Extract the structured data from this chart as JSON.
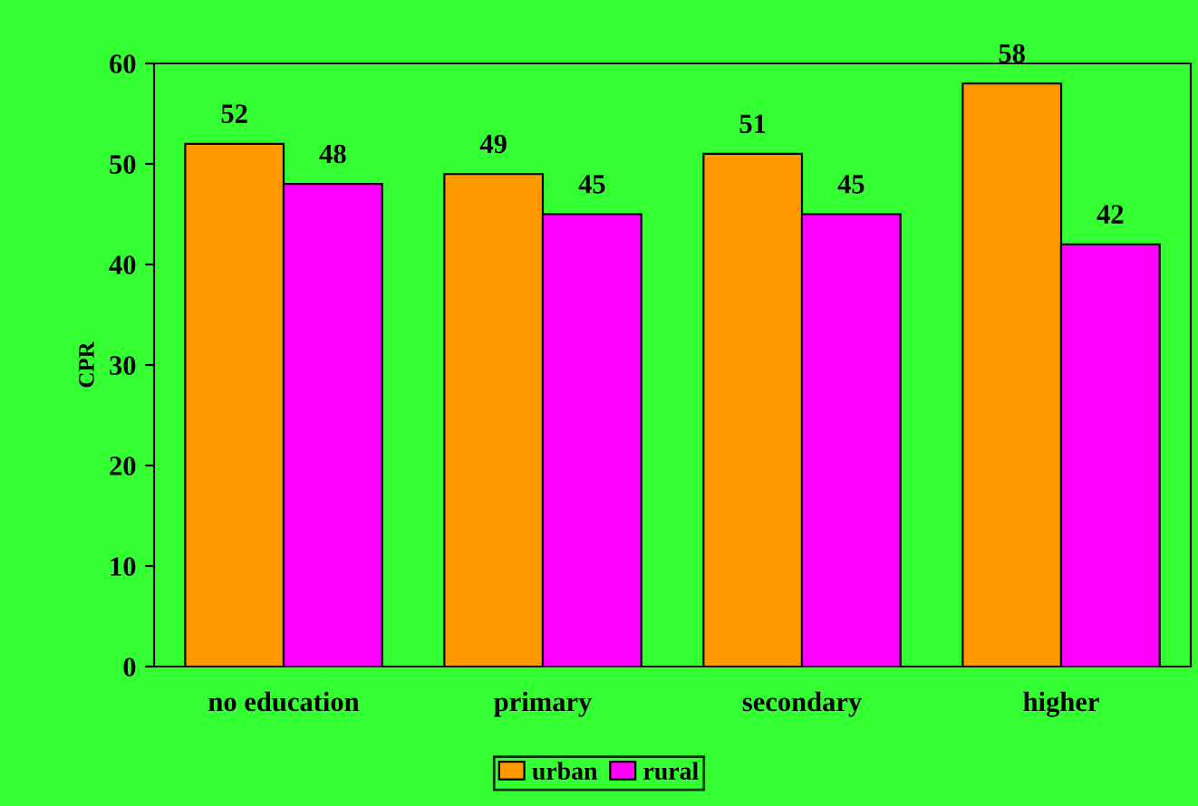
{
  "chart_data": {
    "type": "bar",
    "ylabel": "CPR",
    "categories": [
      "no education",
      "primary",
      "secondary",
      "higher"
    ],
    "series": [
      {
        "name": "urban",
        "color": "#ff9900",
        "values": [
          52,
          49,
          51,
          58
        ]
      },
      {
        "name": "rural",
        "color": "#ff00ff",
        "values": [
          48,
          45,
          45,
          42
        ]
      }
    ],
    "ylim": [
      0,
      60
    ],
    "yticks": [
      0,
      10,
      20,
      30,
      40,
      50,
      60
    ],
    "grid": false,
    "legend": "bottom",
    "data_labels": true
  }
}
